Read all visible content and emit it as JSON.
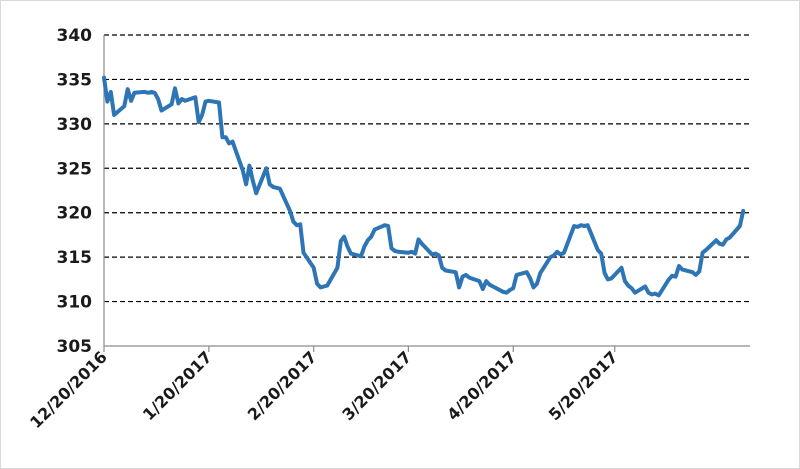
{
  "chart_data": {
    "type": "line",
    "title": "",
    "xlabel": "",
    "ylabel": "",
    "ylim": [
      305,
      340
    ],
    "y_ticks": [
      "305",
      "310",
      "315",
      "320",
      "325",
      "330",
      "335",
      "340"
    ],
    "x_range": [
      "2016-12-20",
      "2017-06-29"
    ],
    "x_tick_labels": [
      "12/20/2016",
      "1/20/2017",
      "2/20/2017",
      "3/20/2017",
      "4/20/2017",
      "5/20/2017"
    ],
    "x_tick_dates": [
      "2016-12-20",
      "2017-01-20",
      "2017-02-20",
      "2017-03-20",
      "2017-04-20",
      "2017-05-20"
    ],
    "grid": "horizontal dashed",
    "legend": "none",
    "series": [
      {
        "color": "#2e75b6",
        "points": [
          [
            "2016-12-20",
            335.2
          ],
          [
            "2016-12-21",
            332.5
          ],
          [
            "2016-12-22",
            333.6
          ],
          [
            "2016-12-23",
            331.0
          ],
          [
            "2016-12-26",
            332.0
          ],
          [
            "2016-12-27",
            333.9
          ],
          [
            "2016-12-28",
            332.6
          ],
          [
            "2016-12-29",
            333.5
          ],
          [
            "2017-01-01",
            333.6
          ],
          [
            "2017-01-02",
            333.5
          ],
          [
            "2017-01-03",
            333.6
          ],
          [
            "2017-01-04",
            333.5
          ],
          [
            "2017-01-05",
            332.8
          ],
          [
            "2017-01-06",
            331.5
          ],
          [
            "2017-01-09",
            332.2
          ],
          [
            "2017-01-10",
            334.0
          ],
          [
            "2017-01-11",
            332.3
          ],
          [
            "2017-01-12",
            332.8
          ],
          [
            "2017-01-13",
            332.6
          ],
          [
            "2017-01-16",
            333.0
          ],
          [
            "2017-01-17",
            330.2
          ],
          [
            "2017-01-18",
            331.0
          ],
          [
            "2017-01-19",
            332.5
          ],
          [
            "2017-01-20",
            332.6
          ],
          [
            "2017-01-23",
            332.4
          ],
          [
            "2017-01-24",
            328.5
          ],
          [
            "2017-01-25",
            328.5
          ],
          [
            "2017-01-26",
            327.8
          ],
          [
            "2017-01-27",
            328.0
          ],
          [
            "2017-01-30",
            324.8
          ],
          [
            "2017-01-31",
            323.2
          ],
          [
            "2017-02-01",
            325.3
          ],
          [
            "2017-02-02",
            323.6
          ],
          [
            "2017-02-03",
            322.2
          ],
          [
            "2017-02-06",
            325.0
          ],
          [
            "2017-02-07",
            323.2
          ],
          [
            "2017-02-08",
            322.9
          ],
          [
            "2017-02-09",
            322.8
          ],
          [
            "2017-02-10",
            322.7
          ],
          [
            "2017-02-13",
            320.2
          ],
          [
            "2017-02-14",
            319.0
          ],
          [
            "2017-02-15",
            318.6
          ],
          [
            "2017-02-16",
            318.7
          ],
          [
            "2017-02-17",
            315.5
          ],
          [
            "2017-02-20",
            313.8
          ],
          [
            "2017-02-21",
            312.0
          ],
          [
            "2017-02-22",
            311.6
          ],
          [
            "2017-02-23",
            311.7
          ],
          [
            "2017-02-24",
            311.8
          ],
          [
            "2017-02-27",
            313.8
          ],
          [
            "2017-02-28",
            316.8
          ],
          [
            "2017-03-01",
            317.3
          ],
          [
            "2017-03-02",
            316.2
          ],
          [
            "2017-03-03",
            315.4
          ],
          [
            "2017-03-06",
            315.1
          ],
          [
            "2017-03-07",
            316.2
          ],
          [
            "2017-03-08",
            316.9
          ],
          [
            "2017-03-09",
            317.3
          ],
          [
            "2017-03-10",
            318.1
          ],
          [
            "2017-03-13",
            318.6
          ],
          [
            "2017-03-14",
            318.5
          ],
          [
            "2017-03-15",
            316.0
          ],
          [
            "2017-03-16",
            315.7
          ],
          [
            "2017-03-17",
            315.6
          ],
          [
            "2017-03-20",
            315.5
          ],
          [
            "2017-03-21",
            315.6
          ],
          [
            "2017-03-22",
            315.4
          ],
          [
            "2017-03-23",
            317.0
          ],
          [
            "2017-03-24",
            316.5
          ],
          [
            "2017-03-27",
            315.3
          ],
          [
            "2017-03-28",
            315.4
          ],
          [
            "2017-03-29",
            315.2
          ],
          [
            "2017-03-30",
            313.8
          ],
          [
            "2017-03-31",
            313.5
          ],
          [
            "2017-04-03",
            313.3
          ],
          [
            "2017-04-04",
            311.6
          ],
          [
            "2017-04-05",
            312.8
          ],
          [
            "2017-04-06",
            313.0
          ],
          [
            "2017-04-07",
            312.7
          ],
          [
            "2017-04-10",
            312.3
          ],
          [
            "2017-04-11",
            311.4
          ],
          [
            "2017-04-12",
            312.3
          ],
          [
            "2017-04-13",
            311.9
          ],
          [
            "2017-04-14",
            311.7
          ],
          [
            "2017-04-17",
            311.1
          ],
          [
            "2017-04-18",
            311.0
          ],
          [
            "2017-04-19",
            311.3
          ],
          [
            "2017-04-20",
            311.5
          ],
          [
            "2017-04-21",
            313.0
          ],
          [
            "2017-04-24",
            313.3
          ],
          [
            "2017-04-25",
            312.6
          ],
          [
            "2017-04-26",
            311.6
          ],
          [
            "2017-04-27",
            312.0
          ],
          [
            "2017-04-28",
            313.2
          ],
          [
            "2017-05-01",
            315.0
          ],
          [
            "2017-05-02",
            315.2
          ],
          [
            "2017-05-03",
            315.6
          ],
          [
            "2017-05-04",
            315.3
          ],
          [
            "2017-05-05",
            315.5
          ],
          [
            "2017-05-08",
            318.5
          ],
          [
            "2017-05-09",
            318.4
          ],
          [
            "2017-05-10",
            318.6
          ],
          [
            "2017-05-11",
            318.5
          ],
          [
            "2017-05-12",
            318.6
          ],
          [
            "2017-05-15",
            315.8
          ],
          [
            "2017-05-16",
            315.4
          ],
          [
            "2017-05-17",
            313.2
          ],
          [
            "2017-05-18",
            312.5
          ],
          [
            "2017-05-19",
            312.6
          ],
          [
            "2017-05-22",
            313.8
          ],
          [
            "2017-05-23",
            312.3
          ],
          [
            "2017-05-24",
            311.8
          ],
          [
            "2017-05-25",
            311.5
          ],
          [
            "2017-05-26",
            311.0
          ],
          [
            "2017-05-29",
            311.7
          ],
          [
            "2017-05-30",
            311.0
          ],
          [
            "2017-05-31",
            310.8
          ],
          [
            "2017-06-01",
            310.9
          ],
          [
            "2017-06-02",
            310.7
          ],
          [
            "2017-06-05",
            312.5
          ],
          [
            "2017-06-06",
            312.9
          ],
          [
            "2017-06-07",
            312.8
          ],
          [
            "2017-06-08",
            314.0
          ],
          [
            "2017-06-09",
            313.6
          ],
          [
            "2017-06-12",
            313.3
          ],
          [
            "2017-06-13",
            313.0
          ],
          [
            "2017-06-14",
            313.4
          ],
          [
            "2017-06-15",
            315.5
          ],
          [
            "2017-06-16",
            315.8
          ],
          [
            "2017-06-19",
            316.9
          ],
          [
            "2017-06-20",
            316.5
          ],
          [
            "2017-06-21",
            316.4
          ],
          [
            "2017-06-22",
            317.0
          ],
          [
            "2017-06-23",
            317.2
          ],
          [
            "2017-06-26",
            318.5
          ],
          [
            "2017-06-27",
            320.2
          ]
        ]
      }
    ]
  }
}
